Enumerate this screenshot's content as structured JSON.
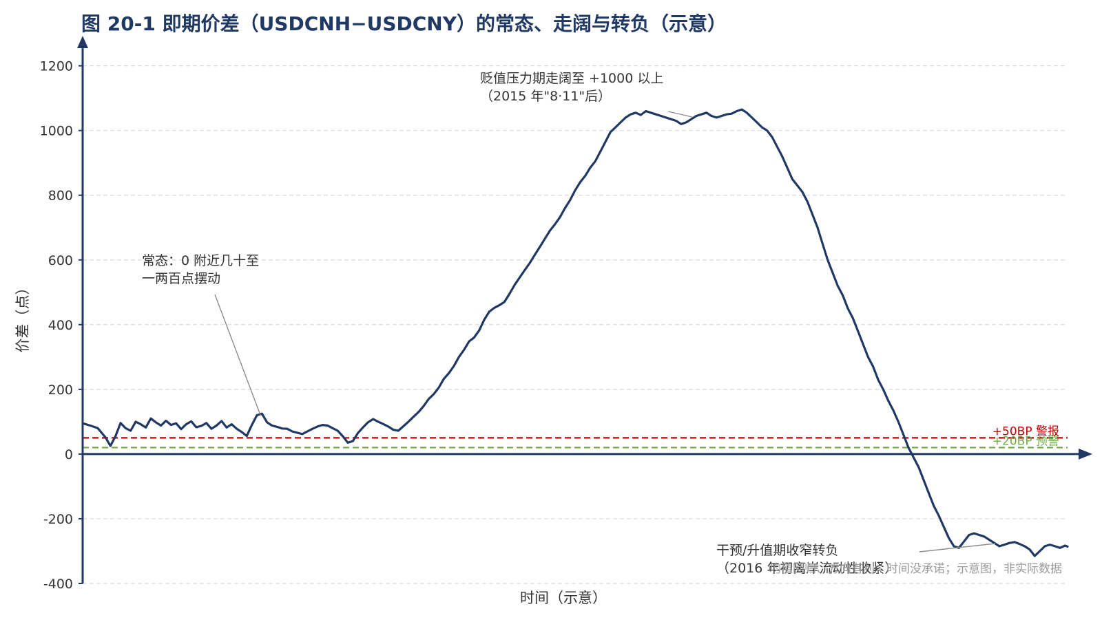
{
  "chart_data": {
    "type": "line",
    "title": "图 20-1 即期价差（USDCNH−USDCNY）的常态、走阔与转负（示意）",
    "xlabel": "时间（示意）",
    "ylabel": "价差（点）",
    "ylim": [
      -400,
      1280
    ],
    "yticks": [
      1200,
      1000,
      800,
      600,
      400,
      200,
      0,
      -200,
      -400
    ],
    "grid": true,
    "series": [
      {
        "color": "#1f3864",
        "points": [
          [
            0,
            95
          ],
          [
            3,
            88
          ],
          [
            6,
            80
          ],
          [
            9,
            52
          ],
          [
            11,
            25
          ],
          [
            13,
            55
          ],
          [
            15,
            96
          ],
          [
            17,
            80
          ],
          [
            19,
            72
          ],
          [
            21,
            100
          ],
          [
            23,
            92
          ],
          [
            25,
            82
          ],
          [
            27,
            110
          ],
          [
            29,
            98
          ],
          [
            31,
            88
          ],
          [
            33,
            103
          ],
          [
            35,
            90
          ],
          [
            37,
            95
          ],
          [
            39,
            77
          ],
          [
            41,
            92
          ],
          [
            43,
            101
          ],
          [
            45,
            83
          ],
          [
            47,
            87
          ],
          [
            49,
            96
          ],
          [
            51,
            78
          ],
          [
            53,
            88
          ],
          [
            55,
            102
          ],
          [
            57,
            82
          ],
          [
            59,
            92
          ],
          [
            61,
            78
          ],
          [
            63,
            68
          ],
          [
            65,
            56
          ],
          [
            67,
            90
          ],
          [
            69,
            120
          ],
          [
            71,
            125
          ],
          [
            73,
            98
          ],
          [
            75,
            88
          ],
          [
            77,
            84
          ],
          [
            79,
            79
          ],
          [
            81,
            78
          ],
          [
            83,
            70
          ],
          [
            85,
            66
          ],
          [
            87,
            62
          ],
          [
            89,
            70
          ],
          [
            91,
            78
          ],
          [
            93,
            85
          ],
          [
            95,
            90
          ],
          [
            97,
            88
          ],
          [
            99,
            80
          ],
          [
            101,
            72
          ],
          [
            103,
            55
          ],
          [
            105,
            35
          ],
          [
            107,
            40
          ],
          [
            109,
            65
          ],
          [
            111,
            82
          ],
          [
            113,
            98
          ],
          [
            115,
            108
          ],
          [
            117,
            100
          ],
          [
            119,
            93
          ],
          [
            121,
            85
          ],
          [
            123,
            75
          ],
          [
            125,
            72
          ],
          [
            127,
            86
          ],
          [
            129,
            100
          ],
          [
            131,
            115
          ],
          [
            133,
            130
          ],
          [
            135,
            148
          ],
          [
            137,
            170
          ],
          [
            139,
            185
          ],
          [
            141,
            205
          ],
          [
            143,
            232
          ],
          [
            145,
            250
          ],
          [
            147,
            272
          ],
          [
            149,
            300
          ],
          [
            151,
            322
          ],
          [
            153,
            348
          ],
          [
            155,
            360
          ],
          [
            157,
            382
          ],
          [
            159,
            415
          ],
          [
            161,
            440
          ],
          [
            163,
            452
          ],
          [
            165,
            460
          ],
          [
            167,
            470
          ],
          [
            169,
            495
          ],
          [
            171,
            522
          ],
          [
            173,
            545
          ],
          [
            175,
            568
          ],
          [
            177,
            590
          ],
          [
            179,
            615
          ],
          [
            181,
            640
          ],
          [
            183,
            665
          ],
          [
            185,
            690
          ],
          [
            187,
            710
          ],
          [
            189,
            732
          ],
          [
            191,
            760
          ],
          [
            193,
            785
          ],
          [
            195,
            815
          ],
          [
            197,
            840
          ],
          [
            199,
            860
          ],
          [
            201,
            885
          ],
          [
            203,
            905
          ],
          [
            205,
            935
          ],
          [
            207,
            965
          ],
          [
            209,
            995
          ],
          [
            211,
            1010
          ],
          [
            213,
            1025
          ],
          [
            215,
            1040
          ],
          [
            217,
            1050
          ],
          [
            219,
            1055
          ],
          [
            221,
            1048
          ],
          [
            223,
            1060
          ],
          [
            225,
            1055
          ],
          [
            227,
            1050
          ],
          [
            229,
            1045
          ],
          [
            231,
            1040
          ],
          [
            233,
            1035
          ],
          [
            235,
            1030
          ],
          [
            237,
            1020
          ],
          [
            239,
            1025
          ],
          [
            241,
            1035
          ],
          [
            243,
            1045
          ],
          [
            245,
            1050
          ],
          [
            247,
            1055
          ],
          [
            249,
            1045
          ],
          [
            251,
            1040
          ],
          [
            253,
            1045
          ],
          [
            255,
            1050
          ],
          [
            257,
            1052
          ],
          [
            259,
            1060
          ],
          [
            261,
            1065
          ],
          [
            263,
            1055
          ],
          [
            265,
            1040
          ],
          [
            267,
            1025
          ],
          [
            269,
            1010
          ],
          [
            271,
            1000
          ],
          [
            273,
            980
          ],
          [
            275,
            950
          ],
          [
            277,
            920
          ],
          [
            279,
            885
          ],
          [
            281,
            850
          ],
          [
            283,
            830
          ],
          [
            285,
            810
          ],
          [
            287,
            780
          ],
          [
            289,
            740
          ],
          [
            291,
            700
          ],
          [
            293,
            650
          ],
          [
            295,
            600
          ],
          [
            297,
            560
          ],
          [
            299,
            520
          ],
          [
            301,
            490
          ],
          [
            303,
            450
          ],
          [
            305,
            420
          ],
          [
            307,
            380
          ],
          [
            309,
            340
          ],
          [
            311,
            300
          ],
          [
            313,
            270
          ],
          [
            315,
            230
          ],
          [
            317,
            200
          ],
          [
            319,
            165
          ],
          [
            321,
            135
          ],
          [
            323,
            100
          ],
          [
            325,
            60
          ],
          [
            327,
            20
          ],
          [
            329,
            -10
          ],
          [
            331,
            -40
          ],
          [
            333,
            -80
          ],
          [
            335,
            -120
          ],
          [
            337,
            -160
          ],
          [
            339,
            -190
          ],
          [
            341,
            -225
          ],
          [
            343,
            -260
          ],
          [
            345,
            -285
          ],
          [
            347,
            -290
          ],
          [
            349,
            -270
          ],
          [
            351,
            -250
          ],
          [
            353,
            -245
          ],
          [
            355,
            -250
          ],
          [
            357,
            -255
          ],
          [
            359,
            -265
          ],
          [
            361,
            -275
          ],
          [
            363,
            -285
          ],
          [
            365,
            -280
          ],
          [
            367,
            -275
          ],
          [
            369,
            -272
          ],
          [
            371,
            -278
          ],
          [
            373,
            -285
          ],
          [
            375,
            -295
          ],
          [
            377,
            -315
          ],
          [
            379,
            -300
          ],
          [
            381,
            -285
          ],
          [
            383,
            -280
          ],
          [
            385,
            -285
          ],
          [
            387,
            -290
          ],
          [
            389,
            -283
          ],
          [
            390,
            -286
          ]
        ]
      }
    ],
    "reference_lines": [
      {
        "label": "+50BP 警报",
        "value": 50,
        "color": "#c00000"
      },
      {
        "label": "+20BP 预警",
        "value": 20,
        "color": "#70ad47"
      }
    ],
    "annotations": [
      {
        "lines": [
          "常态：0 附近几十至",
          "一两百点摆动"
        ]
      },
      {
        "lines": [
          "贬值压力期走阔至 +1000 以上",
          "（2015 年\"8·11\"后）"
        ]
      },
      {
        "lines": [
          "干预/升值期收窄转负",
          "（2016 年初离岸流动性收紧）"
        ]
      }
    ],
    "footnote": "均值回归、方向有利，时间没承诺；示意图，非实际数据"
  }
}
